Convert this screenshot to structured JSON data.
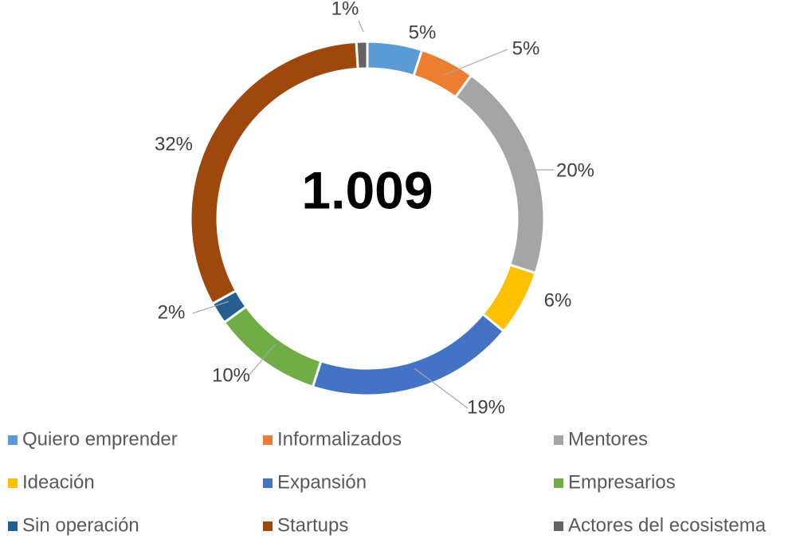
{
  "chart_data": {
    "type": "donut",
    "center_label": "1.009",
    "categories": [
      "Quiero emprender",
      "Informalizados",
      "Mentores",
      "Ideación",
      "Expansión",
      "Empresarios",
      "Sin operación",
      "Startups",
      "Actores del ecosistema"
    ],
    "values": [
      5,
      5,
      20,
      6,
      19,
      10,
      2,
      32,
      1
    ],
    "value_labels": [
      "5%",
      "5%",
      "20%",
      "6%",
      "19%",
      "10%",
      "2%",
      "32%",
      "1%"
    ],
    "colors": [
      "#5b9bd5",
      "#ed7d31",
      "#a5a5a5",
      "#ffc000",
      "#4472c4",
      "#70ad47",
      "#255e91",
      "#9e480e",
      "#636363"
    ],
    "legend": "bottom"
  }
}
